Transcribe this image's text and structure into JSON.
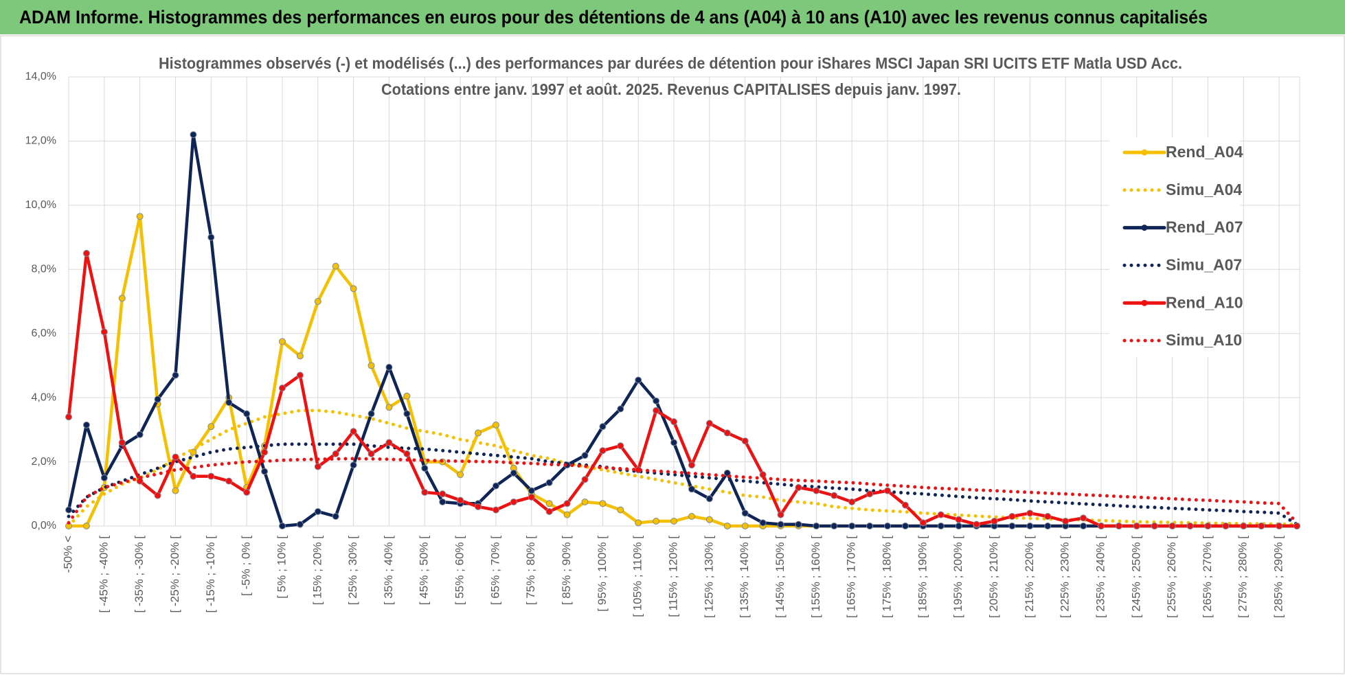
{
  "header": {
    "title": "ADAM Informe. Histogrammes des performances en euros pour des détentions de 4 ans (A04) à 10 ans (A10) avec les revenus connus capitalisés"
  },
  "chart_data": {
    "type": "line",
    "title": "Histogrammes observés (-) et modélisés (...) des performances par durées de détention pour iShares MSCI Japan SRI UCITS ETF Matla USD Acc.",
    "subtitle": "Cotations entre janv. 1997 et août. 2025. Revenus CAPITALISES depuis janv. 1997.",
    "categories": [
      "-50% <",
      null,
      "[ -45% ; -40% [",
      null,
      "[ -35% ; -30% [",
      null,
      "[ -25% ; -20% [",
      null,
      "[ -15% ; -10% [",
      null,
      "[ -5% ; 0% [",
      null,
      "[ 5% ; 10% [",
      null,
      "[ 15% ; 20% [",
      null,
      "[ 25% ; 30% [",
      null,
      "[ 35% ; 40% [",
      null,
      "[ 45% ; 50% [",
      null,
      "[ 55% ; 60% [",
      null,
      "[ 65% ; 70% [",
      null,
      "[ 75% ; 80% [",
      null,
      "[ 85% ; 90% [",
      null,
      "[ 95% ; 100% [",
      null,
      "[ 105% ; 110% [",
      null,
      "[ 115% ; 120% [",
      null,
      "[ 125% ; 130% [",
      null,
      "[ 135% ; 140% [",
      null,
      "[ 145% ; 150% [",
      null,
      "[ 155% ; 160% [",
      null,
      "[ 165% ; 170% [",
      null,
      "[ 175% ; 180% [",
      null,
      "[ 185% ; 190% [",
      null,
      "[ 195% ; 200% [",
      null,
      "[ 205% ; 210% [",
      null,
      "[ 215% ; 220% [",
      null,
      "[ 225% ; 230% [",
      null,
      "[ 235% ; 240% [",
      null,
      "[ 245% ; 250% [",
      null,
      "[ 255% ; 260% [",
      null,
      "[ 265% ; 270% [",
      null,
      "[ 275% ; 280% [",
      null,
      "[ 285% ; 290% [",
      null
    ],
    "series": [
      {
        "name": "Rend_A04",
        "color": "#f5c000",
        "style": "solid",
        "values": [
          0,
          0,
          1.2,
          7.1,
          9.65,
          3.8,
          1.1,
          2.3,
          3.1,
          4.0,
          1.2,
          2.5,
          5.75,
          5.3,
          7.0,
          8.1,
          7.4,
          5.0,
          3.7,
          4.05,
          2.0,
          2.0,
          1.6,
          2.9,
          3.15,
          1.8,
          1.0,
          0.7,
          0.35,
          0.75,
          0.7,
          0.5,
          0.1,
          0.15,
          0.15,
          0.3,
          0.2,
          0,
          0,
          0,
          0,
          0,
          0,
          0,
          0,
          0,
          0,
          0,
          0,
          0,
          0,
          0,
          0,
          0,
          0,
          0,
          0,
          0,
          0,
          0,
          0,
          0,
          0,
          0,
          0,
          0,
          0,
          0,
          0,
          0
        ]
      },
      {
        "name": "Simu_A04",
        "color": "#f5c000",
        "style": "dotted",
        "values": [
          0.0,
          0.6,
          1.0,
          1.3,
          1.5,
          1.75,
          2.1,
          2.4,
          2.7,
          3.0,
          3.2,
          3.4,
          3.5,
          3.6,
          3.6,
          3.55,
          3.45,
          3.35,
          3.2,
          3.05,
          2.95,
          2.85,
          2.7,
          2.6,
          2.5,
          2.35,
          2.2,
          2.1,
          1.95,
          1.85,
          1.75,
          1.65,
          1.55,
          1.45,
          1.35,
          1.25,
          1.15,
          1.05,
          0.95,
          0.9,
          0.8,
          0.75,
          0.7,
          0.6,
          0.55,
          0.5,
          0.47,
          0.44,
          0.4,
          0.37,
          0.34,
          0.31,
          0.28,
          0.26,
          0.24,
          0.22,
          0.2,
          0.19,
          0.17,
          0.15,
          0.13,
          0.12,
          0.11,
          0.1,
          0.09,
          0.08,
          0.07,
          0.07,
          0.06,
          0.05
        ]
      },
      {
        "name": "Rend_A07",
        "color": "#0f2557",
        "style": "solid",
        "values": [
          0.5,
          3.15,
          1.5,
          2.5,
          2.85,
          3.95,
          4.7,
          12.2,
          9.0,
          3.85,
          3.5,
          1.7,
          0.0,
          0.05,
          0.45,
          0.3,
          1.9,
          3.5,
          4.95,
          3.5,
          1.8,
          0.75,
          0.7,
          0.7,
          1.25,
          1.65,
          1.1,
          1.35,
          1.9,
          2.2,
          3.1,
          3.65,
          4.55,
          3.9,
          2.6,
          1.15,
          0.85,
          1.65,
          0.4,
          0.1,
          0.05,
          0.05,
          0,
          0,
          0,
          0,
          0,
          0,
          0,
          0,
          0,
          0,
          0,
          0,
          0,
          0,
          0,
          0,
          0,
          0,
          0,
          0,
          0,
          0,
          0,
          0,
          0,
          0,
          0,
          0
        ]
      },
      {
        "name": "Simu_A07",
        "color": "#0f2557",
        "style": "dotted",
        "values": [
          0.3,
          0.9,
          1.2,
          1.4,
          1.6,
          1.8,
          2.0,
          2.15,
          2.3,
          2.4,
          2.45,
          2.5,
          2.55,
          2.55,
          2.55,
          2.55,
          2.55,
          2.5,
          2.45,
          2.42,
          2.4,
          2.35,
          2.3,
          2.25,
          2.2,
          2.15,
          2.1,
          2.0,
          1.95,
          1.9,
          1.85,
          1.75,
          1.7,
          1.65,
          1.6,
          1.55,
          1.5,
          1.45,
          1.4,
          1.35,
          1.3,
          1.25,
          1.22,
          1.18,
          1.15,
          1.1,
          1.07,
          1.03,
          1.0,
          0.96,
          0.92,
          0.88,
          0.85,
          0.82,
          0.78,
          0.75,
          0.72,
          0.69,
          0.66,
          0.63,
          0.6,
          0.58,
          0.55,
          0.53,
          0.5,
          0.48,
          0.45,
          0.43,
          0.4,
          0.05
        ]
      },
      {
        "name": "Rend_A10",
        "color": "#ee1111",
        "style": "solid",
        "values": [
          3.4,
          8.5,
          6.05,
          2.6,
          1.4,
          0.95,
          2.15,
          1.55,
          1.55,
          1.4,
          1.05,
          2.3,
          4.3,
          4.7,
          1.85,
          2.25,
          2.95,
          2.25,
          2.6,
          2.25,
          1.05,
          1.0,
          0.8,
          0.6,
          0.5,
          0.75,
          0.9,
          0.45,
          0.7,
          1.45,
          2.35,
          2.5,
          1.75,
          3.6,
          3.25,
          1.9,
          3.2,
          2.9,
          2.65,
          1.6,
          0.35,
          1.2,
          1.1,
          0.95,
          0.75,
          1.0,
          1.1,
          0.65,
          0.1,
          0.35,
          0.2,
          0.05,
          0.15,
          0.3,
          0.4,
          0.3,
          0.15,
          0.25,
          0,
          0,
          0,
          0,
          0,
          0,
          0,
          0,
          0,
          0,
          0,
          0
        ]
      },
      {
        "name": "Simu_A10",
        "color": "#ee1111",
        "style": "dotted",
        "values": [
          0.1,
          0.9,
          1.2,
          1.35,
          1.5,
          1.62,
          1.75,
          1.82,
          1.9,
          1.95,
          2.0,
          2.02,
          2.05,
          2.07,
          2.08,
          2.09,
          2.1,
          2.09,
          2.08,
          2.06,
          2.05,
          2.03,
          2.02,
          2.01,
          2.0,
          1.97,
          1.95,
          1.92,
          1.9,
          1.86,
          1.82,
          1.79,
          1.75,
          1.71,
          1.68,
          1.64,
          1.6,
          1.56,
          1.52,
          1.49,
          1.45,
          1.42,
          1.4,
          1.37,
          1.35,
          1.31,
          1.27,
          1.24,
          1.2,
          1.17,
          1.15,
          1.12,
          1.1,
          1.07,
          1.05,
          1.02,
          1.0,
          0.97,
          0.95,
          0.92,
          0.9,
          0.87,
          0.85,
          0.82,
          0.8,
          0.77,
          0.75,
          0.72,
          0.7,
          0.1
        ]
      }
    ],
    "ylim": [
      0,
      14
    ],
    "yticks": [
      {
        "value": 0,
        "label": "0,0%"
      },
      {
        "value": 2,
        "label": "2,0%"
      },
      {
        "value": 4,
        "label": "4,0%"
      },
      {
        "value": 6,
        "label": "6,0%"
      },
      {
        "value": 8,
        "label": "8,0%"
      },
      {
        "value": 10,
        "label": "10,0%"
      },
      {
        "value": 12,
        "label": "12,0%"
      },
      {
        "value": 14,
        "label": "14,0%"
      }
    ],
    "grid": true,
    "legend": "upper right"
  }
}
